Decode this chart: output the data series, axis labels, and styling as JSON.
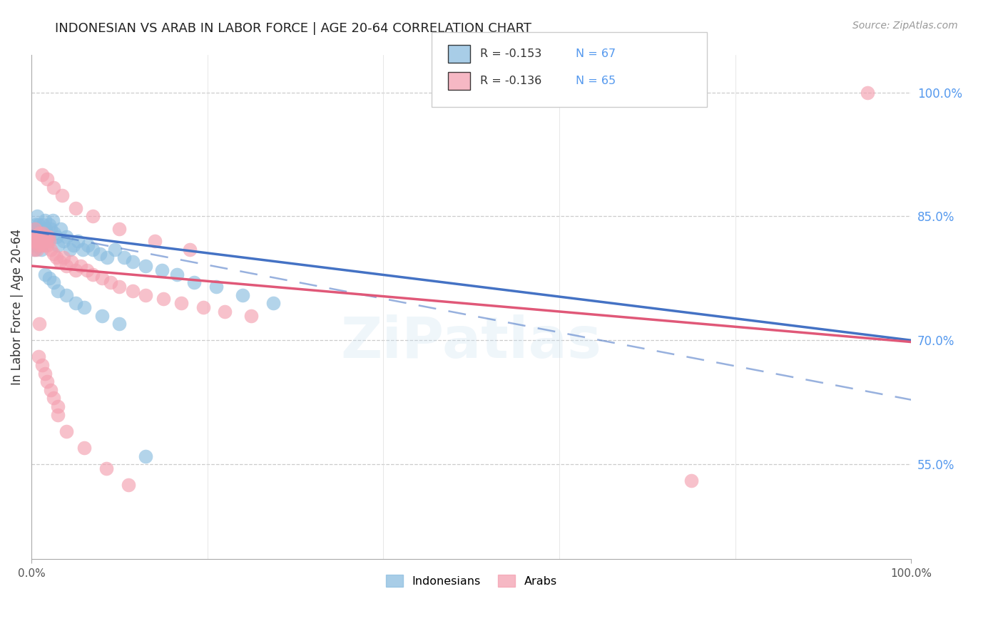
{
  "title": "INDONESIAN VS ARAB IN LABOR FORCE | AGE 20-64 CORRELATION CHART",
  "source": "Source: ZipAtlas.com",
  "ylabel": "In Labor Force | Age 20-64",
  "ytick_labels": [
    "100.0%",
    "85.0%",
    "70.0%",
    "55.0%"
  ],
  "ytick_values": [
    1.0,
    0.85,
    0.7,
    0.55
  ],
  "xlim": [
    0.0,
    1.0
  ],
  "ylim": [
    0.435,
    1.045
  ],
  "legend_blue_r": "R = -0.153",
  "legend_blue_n": "N = 67",
  "legend_pink_r": "R = -0.136",
  "legend_pink_n": "N = 65",
  "legend_label_blue": "Indonesians",
  "legend_label_pink": "Arabs",
  "blue_color": "#8bbde0",
  "pink_color": "#f4a0b0",
  "blue_line_color": "#4472c4",
  "pink_line_color": "#e05878",
  "watermark": "ZiPatlas",
  "blue_line_x0": 0.0,
  "blue_line_y0": 0.832,
  "blue_line_x1": 1.0,
  "blue_line_y1": 0.7,
  "pink_line_x0": 0.0,
  "pink_line_y0": 0.79,
  "pink_line_x1": 1.0,
  "pink_line_y1": 0.698,
  "dash_line_x0": 0.0,
  "dash_line_y0": 0.832,
  "dash_line_x1": 1.0,
  "dash_line_y1": 0.628,
  "indo_x": [
    0.001,
    0.002,
    0.003,
    0.003,
    0.004,
    0.004,
    0.005,
    0.005,
    0.006,
    0.006,
    0.007,
    0.007,
    0.008,
    0.008,
    0.009,
    0.009,
    0.01,
    0.01,
    0.011,
    0.011,
    0.012,
    0.012,
    0.013,
    0.014,
    0.015,
    0.015,
    0.016,
    0.017,
    0.018,
    0.019,
    0.02,
    0.022,
    0.024,
    0.026,
    0.028,
    0.03,
    0.033,
    0.036,
    0.04,
    0.044,
    0.048,
    0.053,
    0.058,
    0.064,
    0.07,
    0.078,
    0.086,
    0.095,
    0.105,
    0.115,
    0.13,
    0.148,
    0.165,
    0.185,
    0.21,
    0.24,
    0.275,
    0.015,
    0.02,
    0.025,
    0.03,
    0.04,
    0.05,
    0.06,
    0.08,
    0.1,
    0.13
  ],
  "indo_y": [
    0.83,
    0.815,
    0.835,
    0.82,
    0.825,
    0.81,
    0.84,
    0.83,
    0.85,
    0.82,
    0.835,
    0.815,
    0.84,
    0.825,
    0.835,
    0.82,
    0.83,
    0.825,
    0.835,
    0.81,
    0.835,
    0.825,
    0.84,
    0.83,
    0.835,
    0.845,
    0.835,
    0.83,
    0.82,
    0.825,
    0.84,
    0.835,
    0.845,
    0.83,
    0.825,
    0.815,
    0.835,
    0.82,
    0.825,
    0.81,
    0.815,
    0.82,
    0.81,
    0.815,
    0.81,
    0.805,
    0.8,
    0.81,
    0.8,
    0.795,
    0.79,
    0.785,
    0.78,
    0.77,
    0.765,
    0.755,
    0.745,
    0.78,
    0.775,
    0.77,
    0.76,
    0.755,
    0.745,
    0.74,
    0.73,
    0.72,
    0.56
  ],
  "arab_x": [
    0.001,
    0.002,
    0.003,
    0.004,
    0.005,
    0.006,
    0.007,
    0.008,
    0.009,
    0.01,
    0.011,
    0.012,
    0.013,
    0.014,
    0.015,
    0.016,
    0.017,
    0.018,
    0.019,
    0.02,
    0.022,
    0.025,
    0.028,
    0.032,
    0.036,
    0.04,
    0.045,
    0.05,
    0.056,
    0.063,
    0.07,
    0.08,
    0.09,
    0.1,
    0.115,
    0.13,
    0.15,
    0.17,
    0.195,
    0.22,
    0.25,
    0.012,
    0.018,
    0.025,
    0.035,
    0.05,
    0.07,
    0.1,
    0.14,
    0.18,
    0.009,
    0.015,
    0.022,
    0.03,
    0.75,
    0.008,
    0.012,
    0.018,
    0.025,
    0.03,
    0.04,
    0.06,
    0.085,
    0.11,
    0.95
  ],
  "arab_y": [
    0.82,
    0.81,
    0.825,
    0.835,
    0.82,
    0.81,
    0.825,
    0.815,
    0.83,
    0.82,
    0.815,
    0.825,
    0.83,
    0.82,
    0.815,
    0.825,
    0.82,
    0.815,
    0.825,
    0.82,
    0.81,
    0.805,
    0.8,
    0.795,
    0.8,
    0.79,
    0.795,
    0.785,
    0.79,
    0.785,
    0.78,
    0.775,
    0.77,
    0.765,
    0.76,
    0.755,
    0.75,
    0.745,
    0.74,
    0.735,
    0.73,
    0.9,
    0.895,
    0.885,
    0.875,
    0.86,
    0.85,
    0.835,
    0.82,
    0.81,
    0.72,
    0.66,
    0.64,
    0.62,
    0.53,
    0.68,
    0.67,
    0.65,
    0.63,
    0.61,
    0.59,
    0.57,
    0.545,
    0.525,
    1.0
  ]
}
